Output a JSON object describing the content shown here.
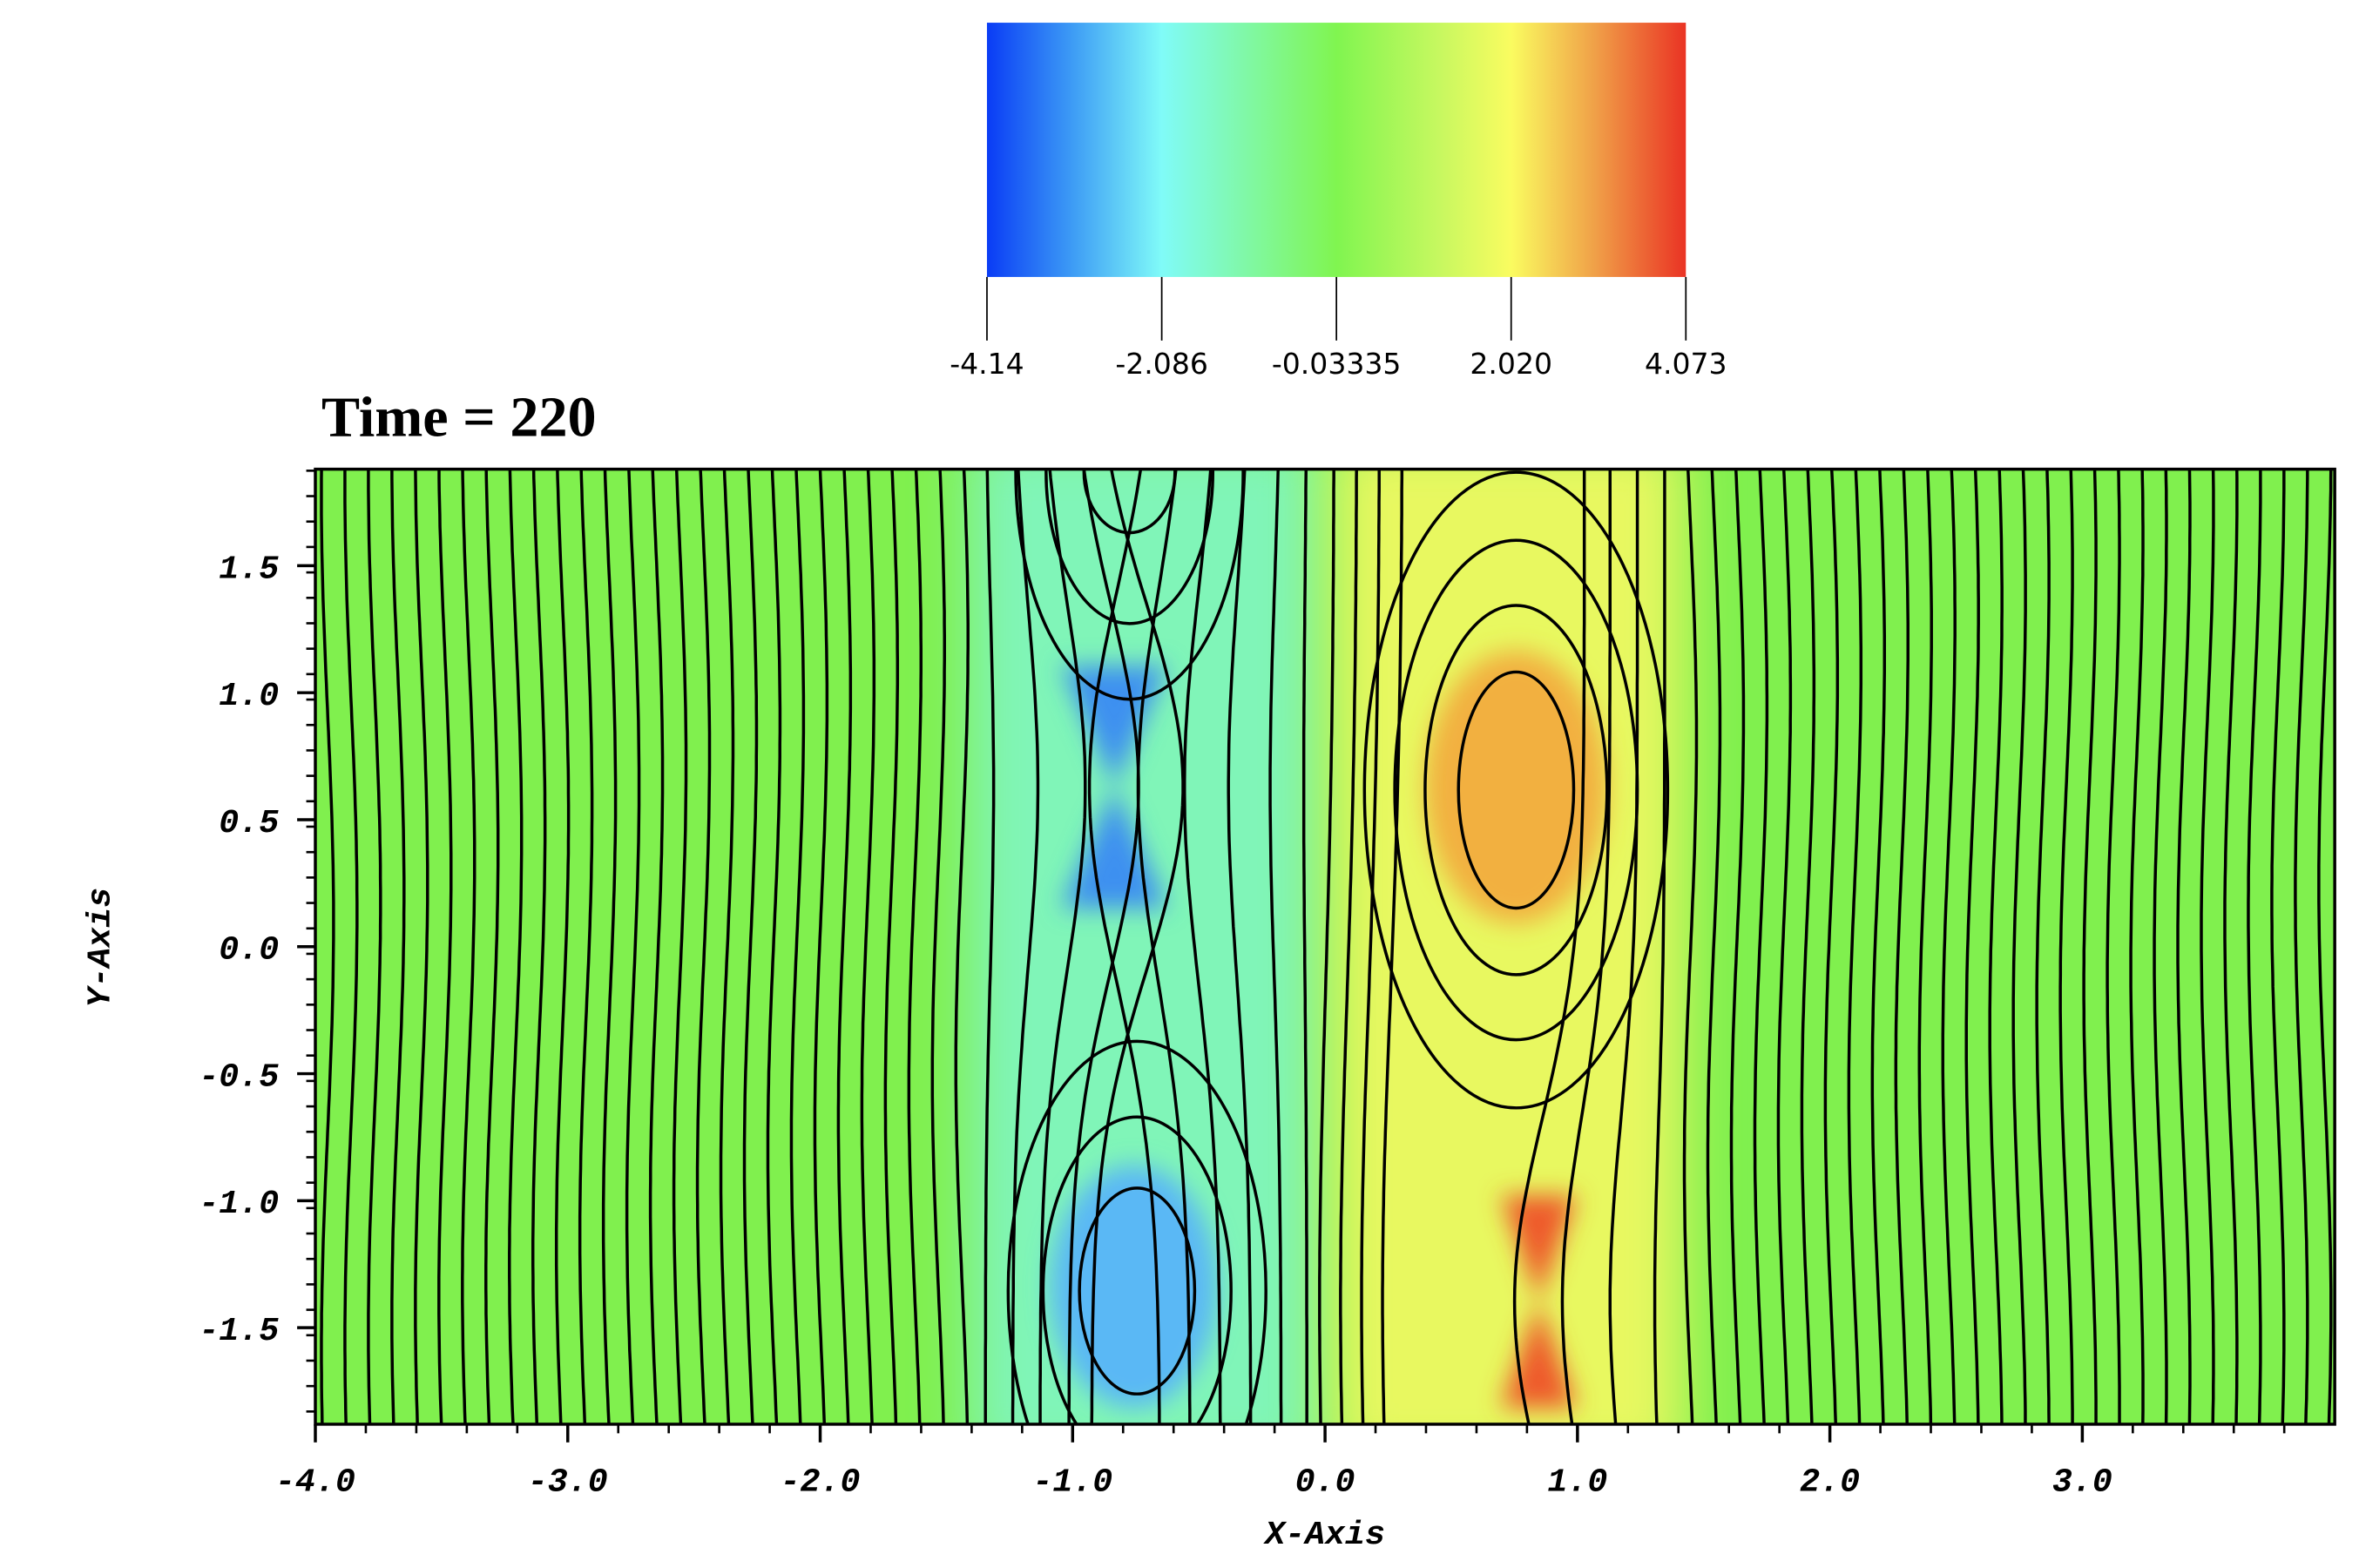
{
  "chart_data": {
    "type": "contour",
    "title": "Time = 220",
    "x_label": "X-Axis",
    "y_label": "Y-Axis",
    "xlim": [
      -4,
      4
    ],
    "ylim": [
      -1.88,
      1.88
    ],
    "xticks": [
      {
        "value": -4,
        "label": "-4.0"
      },
      {
        "value": -3,
        "label": "-3.0"
      },
      {
        "value": -2,
        "label": "-2.0"
      },
      {
        "value": -1,
        "label": "-1.0"
      },
      {
        "value": 0,
        "label": "0.0"
      },
      {
        "value": 1,
        "label": "1.0"
      },
      {
        "value": 2,
        "label": "2.0"
      },
      {
        "value": 3,
        "label": "3.0"
      }
    ],
    "yticks": [
      {
        "value": -1.5,
        "label": "-1.5"
      },
      {
        "value": -1,
        "label": "-1.0"
      },
      {
        "value": -0.5,
        "label": "-0.5"
      },
      {
        "value": 0,
        "label": "0.0"
      },
      0.5,
      {
        "value": 1,
        "label": "1.0"
      },
      1.5
    ],
    "colorbar": {
      "lim": [
        -4.14,
        4.073
      ],
      "ticks": [
        -4.14,
        -2.086,
        -0.03335,
        {
          "value": 2.02,
          "label": "2.020"
        },
        4.073
      ]
    }
  }
}
